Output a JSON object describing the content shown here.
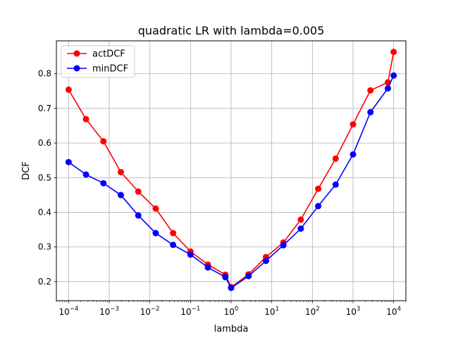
{
  "chart_data": {
    "type": "line",
    "title": "quadratic LR with lambda=0.005",
    "xlabel": "lambda",
    "ylabel": "DCF",
    "xscale": "log",
    "xlim": [
      5e-05,
      20000
    ],
    "ylim": [
      0.145,
      0.895
    ],
    "x": [
      0.0001,
      0.000268,
      0.00072,
      0.00193,
      0.00518,
      0.0139,
      0.0373,
      0.1,
      0.268,
      0.72,
      1.0,
      2.68,
      7.2,
      19.3,
      51.8,
      139,
      373,
      1000,
      2680,
      7200,
      10000
    ],
    "x_ticks": [
      {
        "value": 0.0001,
        "base": "10",
        "exp": "−4"
      },
      {
        "value": 0.001,
        "base": "10",
        "exp": "−3"
      },
      {
        "value": 0.01,
        "base": "10",
        "exp": "−2"
      },
      {
        "value": 0.1,
        "base": "10",
        "exp": "−1"
      },
      {
        "value": 1,
        "base": "10",
        "exp": "0"
      },
      {
        "value": 10,
        "base": "10",
        "exp": "1"
      },
      {
        "value": 100,
        "base": "10",
        "exp": "2"
      },
      {
        "value": 1000,
        "base": "10",
        "exp": "3"
      },
      {
        "value": 10000,
        "base": "10",
        "exp": "4"
      }
    ],
    "y_ticks": [
      {
        "value": 0.2,
        "label": "0.2"
      },
      {
        "value": 0.3,
        "label": "0.3"
      },
      {
        "value": 0.4,
        "label": "0.4"
      },
      {
        "value": 0.5,
        "label": "0.5"
      },
      {
        "value": 0.6,
        "label": "0.6"
      },
      {
        "value": 0.7,
        "label": "0.7"
      },
      {
        "value": 0.8,
        "label": "0.8"
      }
    ],
    "series": [
      {
        "name": "actDCF",
        "color": "#ff0000",
        "values": [
          0.754,
          0.669,
          0.605,
          0.516,
          0.46,
          0.411,
          0.34,
          0.287,
          0.249,
          0.22,
          0.184,
          0.221,
          0.271,
          0.313,
          0.379,
          0.468,
          0.555,
          0.654,
          0.752,
          0.775,
          0.863
        ]
      },
      {
        "name": "minDCF",
        "color": "#0000ff",
        "values": [
          0.545,
          0.509,
          0.484,
          0.45,
          0.391,
          0.34,
          0.306,
          0.278,
          0.241,
          0.213,
          0.182,
          0.216,
          0.26,
          0.305,
          0.353,
          0.418,
          0.48,
          0.567,
          0.689,
          0.758,
          0.795
        ]
      }
    ],
    "grid": true,
    "legend_position": "upper-left"
  }
}
